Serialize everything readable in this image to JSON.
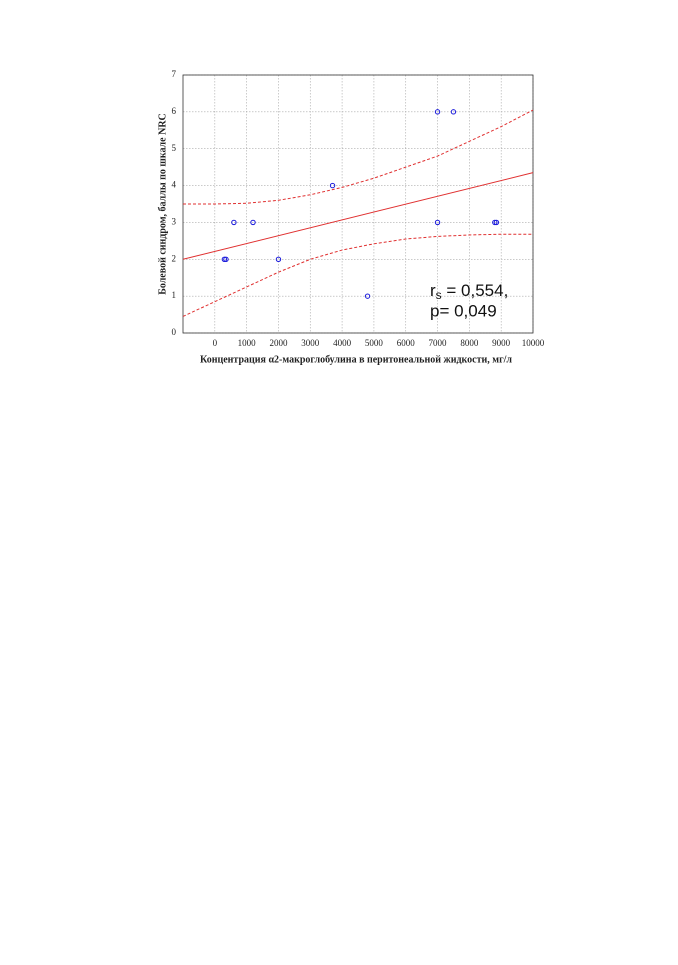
{
  "chart_data": {
    "type": "scatter",
    "x_label": "Концентрация  α2-макроглобулина в перитонеальной жидкости, мг/л",
    "y_label": "Болевой синдром, баллы по шкале NRC",
    "xlim": [
      -1000,
      10000
    ],
    "xticks": [
      0,
      1000,
      2000,
      3000,
      4000,
      5000,
      6000,
      7000,
      8000,
      9000,
      10000
    ],
    "ylim": [
      0,
      7
    ],
    "yticks": [
      0,
      1,
      2,
      3,
      4,
      5,
      6,
      7
    ],
    "grid": true,
    "series": [
      {
        "color": "#1a1adb",
        "x": [
          300,
          350,
          600,
          1200,
          2000,
          3700,
          4800,
          7000,
          7500,
          7000,
          8800,
          8850
        ],
        "values": [
          2,
          2,
          3,
          3,
          2,
          4,
          1,
          6,
          6,
          3,
          3,
          3
        ]
      }
    ],
    "lines": [
      {
        "color": "#e03030",
        "style": "solid",
        "x": [
          -1000,
          10000
        ],
        "values": [
          2.0,
          4.35
        ]
      },
      {
        "color": "#e03030",
        "style": "dashed",
        "x": [
          -1000,
          0,
          1000,
          2000,
          3000,
          4000,
          5000,
          6000,
          7000,
          8000,
          9000,
          10000
        ],
        "values": [
          3.5,
          3.5,
          3.52,
          3.6,
          3.75,
          3.95,
          4.2,
          4.5,
          4.8,
          5.2,
          5.6,
          6.05
        ]
      },
      {
        "color": "#e03030",
        "style": "dashed",
        "x": [
          -1000,
          0,
          1000,
          2000,
          3000,
          4000,
          5000,
          6000,
          7000,
          8000,
          9000,
          10000
        ],
        "values": [
          0.45,
          0.85,
          1.25,
          1.65,
          2.0,
          2.25,
          2.42,
          2.55,
          2.62,
          2.66,
          2.68,
          2.68
        ]
      }
    ],
    "annotation": {
      "r": "r",
      "sub": "s",
      "r_value": " = 0,554,",
      "p_value": "p= 0,049"
    }
  }
}
